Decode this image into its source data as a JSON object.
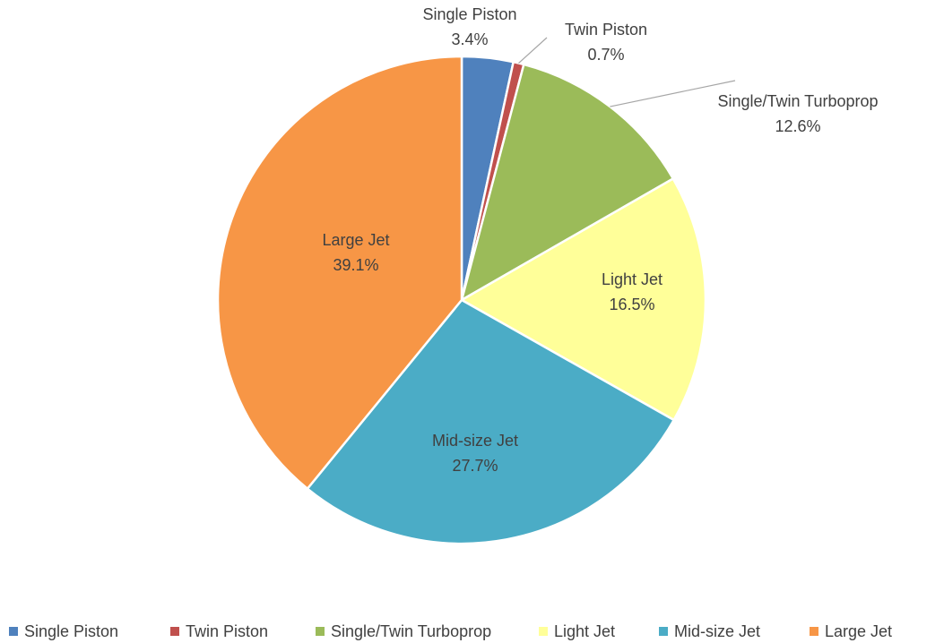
{
  "chart_data": {
    "type": "pie",
    "categories": [
      "Single Piston",
      "Twin Piston",
      "Single/Twin Turboprop",
      "Light Jet",
      "Mid-size Jet",
      "Large Jet"
    ],
    "values": [
      3.4,
      0.7,
      12.6,
      16.5,
      27.7,
      39.1
    ],
    "value_labels": [
      "3.4%",
      "0.7%",
      "12.6%",
      "16.5%",
      "27.7%",
      "39.1%"
    ],
    "colors": [
      "#4f81bd",
      "#c0504d",
      "#9bbb59",
      "#ffff99",
      "#4bacc6",
      "#f79646"
    ],
    "legend": "bottom"
  }
}
